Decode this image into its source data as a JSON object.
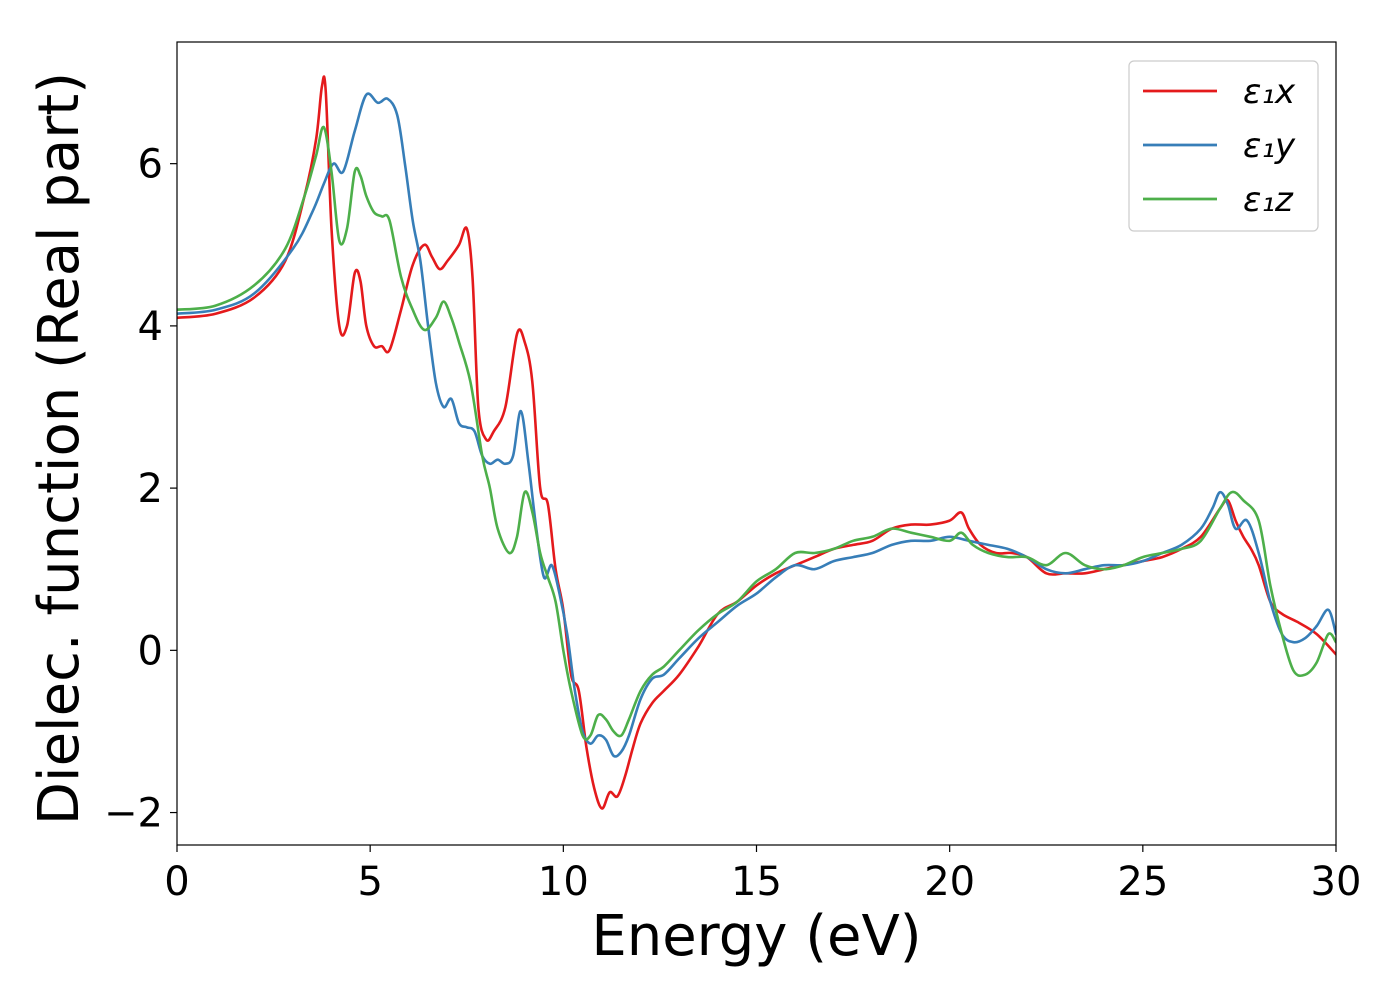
{
  "chart_data": {
    "type": "line",
    "xlabel": "Energy (eV)",
    "ylabel": "Dielec. function (Real part)",
    "xlim": [
      0,
      30
    ],
    "ylim": [
      -2.4,
      7.5
    ],
    "xticks": [
      "0",
      "5",
      "10",
      "15",
      "20",
      "25",
      "30"
    ],
    "xtick_values": [
      0,
      5,
      10,
      15,
      20,
      25,
      30
    ],
    "yticks": [
      "−2",
      "0",
      "2",
      "4",
      "6"
    ],
    "ytick_values": [
      -2,
      0,
      2,
      4,
      6
    ],
    "grid": false,
    "legend_position": "top-right",
    "series": [
      {
        "name": "ε₁x",
        "color": "#e41a1c",
        "points": [
          [
            0,
            4.1
          ],
          [
            1,
            4.15
          ],
          [
            2,
            4.35
          ],
          [
            2.8,
            4.8
          ],
          [
            3.3,
            5.6
          ],
          [
            3.6,
            6.3
          ],
          [
            3.75,
            6.95
          ],
          [
            3.85,
            6.9
          ],
          [
            4.0,
            5.2
          ],
          [
            4.2,
            4.0
          ],
          [
            4.4,
            4.0
          ],
          [
            4.6,
            4.65
          ],
          [
            4.75,
            4.55
          ],
          [
            4.9,
            4.0
          ],
          [
            5.1,
            3.75
          ],
          [
            5.3,
            3.75
          ],
          [
            5.5,
            3.7
          ],
          [
            5.8,
            4.2
          ],
          [
            6.1,
            4.75
          ],
          [
            6.4,
            5.0
          ],
          [
            6.6,
            4.85
          ],
          [
            6.8,
            4.7
          ],
          [
            7.0,
            4.8
          ],
          [
            7.3,
            5.0
          ],
          [
            7.5,
            5.2
          ],
          [
            7.65,
            4.6
          ],
          [
            7.8,
            3.0
          ],
          [
            8.0,
            2.6
          ],
          [
            8.2,
            2.7
          ],
          [
            8.5,
            3.0
          ],
          [
            8.8,
            3.9
          ],
          [
            9.0,
            3.8
          ],
          [
            9.2,
            3.3
          ],
          [
            9.4,
            2.0
          ],
          [
            9.6,
            1.8
          ],
          [
            9.8,
            1.0
          ],
          [
            10.0,
            0.5
          ],
          [
            10.2,
            -0.3
          ],
          [
            10.4,
            -0.5
          ],
          [
            10.6,
            -1.2
          ],
          [
            10.8,
            -1.7
          ],
          [
            11.0,
            -1.95
          ],
          [
            11.2,
            -1.75
          ],
          [
            11.4,
            -1.8
          ],
          [
            11.6,
            -1.55
          ],
          [
            11.8,
            -1.2
          ],
          [
            12.0,
            -0.9
          ],
          [
            12.3,
            -0.65
          ],
          [
            12.6,
            -0.5
          ],
          [
            13.0,
            -0.3
          ],
          [
            13.5,
            0.05
          ],
          [
            14.0,
            0.45
          ],
          [
            14.5,
            0.6
          ],
          [
            15.0,
            0.8
          ],
          [
            15.5,
            0.95
          ],
          [
            16.0,
            1.05
          ],
          [
            16.5,
            1.15
          ],
          [
            17.0,
            1.25
          ],
          [
            17.5,
            1.3
          ],
          [
            18.0,
            1.35
          ],
          [
            18.5,
            1.5
          ],
          [
            19.0,
            1.55
          ],
          [
            19.5,
            1.55
          ],
          [
            20.0,
            1.6
          ],
          [
            20.3,
            1.7
          ],
          [
            20.5,
            1.5
          ],
          [
            20.8,
            1.3
          ],
          [
            21.2,
            1.2
          ],
          [
            21.6,
            1.2
          ],
          [
            22.0,
            1.15
          ],
          [
            22.5,
            0.95
          ],
          [
            23.0,
            0.95
          ],
          [
            23.5,
            0.95
          ],
          [
            24.0,
            1.0
          ],
          [
            24.5,
            1.05
          ],
          [
            25.0,
            1.1
          ],
          [
            25.5,
            1.15
          ],
          [
            26.0,
            1.25
          ],
          [
            26.5,
            1.4
          ],
          [
            27.0,
            1.75
          ],
          [
            27.2,
            1.85
          ],
          [
            27.4,
            1.6
          ],
          [
            27.6,
            1.4
          ],
          [
            27.8,
            1.25
          ],
          [
            28.0,
            1.05
          ],
          [
            28.3,
            0.6
          ],
          [
            28.6,
            0.45
          ],
          [
            29.0,
            0.35
          ],
          [
            29.5,
            0.2
          ],
          [
            30.0,
            -0.05
          ]
        ]
      },
      {
        "name": "ε₁y",
        "color": "#377eb8",
        "points": [
          [
            0,
            4.15
          ],
          [
            1,
            4.2
          ],
          [
            2,
            4.4
          ],
          [
            3,
            4.95
          ],
          [
            3.5,
            5.4
          ],
          [
            3.8,
            5.75
          ],
          [
            4.05,
            6.0
          ],
          [
            4.3,
            5.9
          ],
          [
            4.6,
            6.4
          ],
          [
            4.9,
            6.85
          ],
          [
            5.2,
            6.75
          ],
          [
            5.45,
            6.8
          ],
          [
            5.7,
            6.6
          ],
          [
            5.9,
            6.0
          ],
          [
            6.1,
            5.3
          ],
          [
            6.3,
            4.8
          ],
          [
            6.5,
            4.0
          ],
          [
            6.7,
            3.3
          ],
          [
            6.9,
            3.0
          ],
          [
            7.1,
            3.1
          ],
          [
            7.3,
            2.8
          ],
          [
            7.5,
            2.75
          ],
          [
            7.7,
            2.7
          ],
          [
            7.9,
            2.4
          ],
          [
            8.1,
            2.3
          ],
          [
            8.3,
            2.35
          ],
          [
            8.5,
            2.3
          ],
          [
            8.7,
            2.4
          ],
          [
            8.9,
            2.95
          ],
          [
            9.1,
            2.3
          ],
          [
            9.3,
            1.5
          ],
          [
            9.5,
            0.9
          ],
          [
            9.7,
            1.05
          ],
          [
            9.9,
            0.7
          ],
          [
            10.1,
            0.2
          ],
          [
            10.3,
            -0.5
          ],
          [
            10.5,
            -1.0
          ],
          [
            10.7,
            -1.15
          ],
          [
            10.9,
            -1.05
          ],
          [
            11.1,
            -1.1
          ],
          [
            11.3,
            -1.3
          ],
          [
            11.5,
            -1.25
          ],
          [
            11.7,
            -1.05
          ],
          [
            12.0,
            -0.6
          ],
          [
            12.3,
            -0.35
          ],
          [
            12.6,
            -0.3
          ],
          [
            13.0,
            -0.1
          ],
          [
            13.5,
            0.15
          ],
          [
            14.0,
            0.35
          ],
          [
            14.5,
            0.55
          ],
          [
            15.0,
            0.7
          ],
          [
            15.5,
            0.9
          ],
          [
            16.0,
            1.05
          ],
          [
            16.5,
            1.0
          ],
          [
            17.0,
            1.1
          ],
          [
            17.5,
            1.15
          ],
          [
            18.0,
            1.2
          ],
          [
            18.5,
            1.3
          ],
          [
            19.0,
            1.35
          ],
          [
            19.5,
            1.35
          ],
          [
            20.0,
            1.4
          ],
          [
            20.5,
            1.35
          ],
          [
            21.0,
            1.3
          ],
          [
            21.5,
            1.25
          ],
          [
            22.0,
            1.15
          ],
          [
            22.5,
            1.0
          ],
          [
            23.0,
            0.95
          ],
          [
            23.5,
            1.0
          ],
          [
            24.0,
            1.05
          ],
          [
            24.5,
            1.05
          ],
          [
            25.0,
            1.1
          ],
          [
            25.5,
            1.2
          ],
          [
            26.0,
            1.3
          ],
          [
            26.5,
            1.5
          ],
          [
            26.8,
            1.75
          ],
          [
            27.0,
            1.95
          ],
          [
            27.2,
            1.8
          ],
          [
            27.4,
            1.5
          ],
          [
            27.7,
            1.6
          ],
          [
            28.0,
            1.2
          ],
          [
            28.3,
            0.6
          ],
          [
            28.6,
            0.2
          ],
          [
            28.9,
            0.1
          ],
          [
            29.2,
            0.15
          ],
          [
            29.5,
            0.3
          ],
          [
            29.8,
            0.5
          ],
          [
            30.0,
            0.2
          ]
        ]
      },
      {
        "name": "ε₁z",
        "color": "#4daf4a",
        "points": [
          [
            0,
            4.2
          ],
          [
            1,
            4.25
          ],
          [
            2,
            4.5
          ],
          [
            2.8,
            4.95
          ],
          [
            3.3,
            5.6
          ],
          [
            3.6,
            6.1
          ],
          [
            3.8,
            6.45
          ],
          [
            4.0,
            5.9
          ],
          [
            4.2,
            5.05
          ],
          [
            4.4,
            5.2
          ],
          [
            4.6,
            5.9
          ],
          [
            4.75,
            5.85
          ],
          [
            4.9,
            5.6
          ],
          [
            5.1,
            5.4
          ],
          [
            5.3,
            5.35
          ],
          [
            5.5,
            5.3
          ],
          [
            5.8,
            4.6
          ],
          [
            6.1,
            4.2
          ],
          [
            6.4,
            3.95
          ],
          [
            6.7,
            4.1
          ],
          [
            6.9,
            4.3
          ],
          [
            7.1,
            4.1
          ],
          [
            7.3,
            3.8
          ],
          [
            7.6,
            3.3
          ],
          [
            7.9,
            2.4
          ],
          [
            8.1,
            2.0
          ],
          [
            8.3,
            1.5
          ],
          [
            8.6,
            1.2
          ],
          [
            8.8,
            1.4
          ],
          [
            9.0,
            1.95
          ],
          [
            9.2,
            1.7
          ],
          [
            9.4,
            1.2
          ],
          [
            9.6,
            0.9
          ],
          [
            9.8,
            0.6
          ],
          [
            10.0,
            0.0
          ],
          [
            10.2,
            -0.5
          ],
          [
            10.5,
            -1.05
          ],
          [
            10.7,
            -1.05
          ],
          [
            10.9,
            -0.8
          ],
          [
            11.1,
            -0.85
          ],
          [
            11.3,
            -1.0
          ],
          [
            11.5,
            -1.05
          ],
          [
            11.7,
            -0.85
          ],
          [
            12.0,
            -0.5
          ],
          [
            12.3,
            -0.3
          ],
          [
            12.6,
            -0.2
          ],
          [
            13.0,
            0.0
          ],
          [
            13.5,
            0.25
          ],
          [
            14.0,
            0.45
          ],
          [
            14.5,
            0.6
          ],
          [
            15.0,
            0.85
          ],
          [
            15.5,
            1.0
          ],
          [
            16.0,
            1.2
          ],
          [
            16.5,
            1.2
          ],
          [
            17.0,
            1.25
          ],
          [
            17.5,
            1.35
          ],
          [
            18.0,
            1.4
          ],
          [
            18.5,
            1.5
          ],
          [
            19.0,
            1.45
          ],
          [
            19.5,
            1.4
          ],
          [
            20.0,
            1.35
          ],
          [
            20.3,
            1.45
          ],
          [
            20.6,
            1.3
          ],
          [
            21.0,
            1.2
          ],
          [
            21.5,
            1.15
          ],
          [
            22.0,
            1.15
          ],
          [
            22.5,
            1.05
          ],
          [
            23.0,
            1.2
          ],
          [
            23.5,
            1.05
          ],
          [
            24.0,
            1.0
          ],
          [
            24.5,
            1.05
          ],
          [
            25.0,
            1.15
          ],
          [
            25.5,
            1.2
          ],
          [
            26.0,
            1.25
          ],
          [
            26.5,
            1.35
          ],
          [
            27.0,
            1.75
          ],
          [
            27.3,
            1.95
          ],
          [
            27.6,
            1.85
          ],
          [
            28.0,
            1.6
          ],
          [
            28.3,
            0.8
          ],
          [
            28.6,
            0.2
          ],
          [
            28.9,
            -0.25
          ],
          [
            29.2,
            -0.3
          ],
          [
            29.5,
            -0.15
          ],
          [
            29.8,
            0.2
          ],
          [
            30.0,
            0.1
          ]
        ]
      }
    ]
  }
}
